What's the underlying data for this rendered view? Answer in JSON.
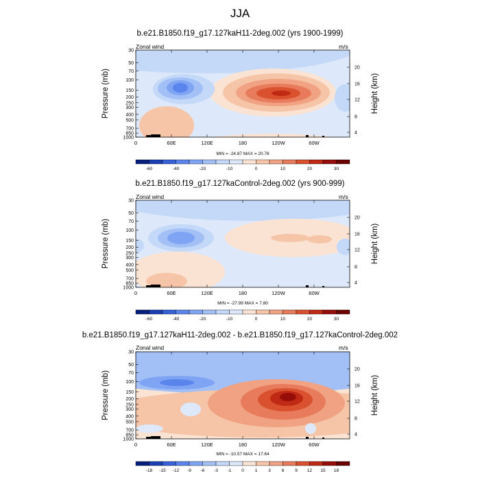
{
  "page_title": "JJA",
  "panels": [
    {
      "title": "b.e21.B1850.f19_g17.127kaH11-2deg.002 (yrs 1900-1999)",
      "left_label": "Zonal wind",
      "right_label": "m/s",
      "minmax": "MIN = -24.87  MAX = 20.78",
      "colorbar_labels": [
        "-60",
        "-40",
        "-20",
        "-10",
        "0",
        "10",
        "20",
        "30"
      ]
    },
    {
      "title": "b.e21.B1850.f19_g17.127kaControl-2deg.002 (yrs 900-999)",
      "left_label": "Zonal wind",
      "right_label": "m/s",
      "minmax": "MIN = -27.99  MAX =  7.80",
      "colorbar_labels": [
        "-60",
        "-40",
        "-20",
        "-10",
        "0",
        "10",
        "20",
        "30"
      ]
    },
    {
      "title": "b.e21.B1850.f19_g17.127kaH11-2deg.002 - b.e21.B1850.f19_g17.127kaControl-2deg.002",
      "left_label": "Zonal wind",
      "right_label": "m/s",
      "minmax": "MIN = -10.57  MAX = 17.64",
      "colorbar_labels": [
        "-18",
        "-15",
        "-12",
        "-9",
        "-6",
        "-3",
        "-1",
        "0",
        "1",
        "3",
        "6",
        "9",
        "12",
        "15",
        "18"
      ]
    }
  ],
  "chart_data": [
    {
      "type": "heatmap",
      "title": "b.e21.B1850.f19_g17.127kaH11-2deg.002 (yrs 1900-1999)",
      "ylabel": "Pressure (mb)",
      "y2label": "Height (km)",
      "x_ticks": [
        "0",
        "60E",
        "120E",
        "180",
        "120W",
        "60W"
      ],
      "y_ticks": [
        "30",
        "50",
        "70",
        "100",
        "150",
        "200",
        "250",
        "300",
        "400",
        "500",
        "700",
        "850",
        "1000"
      ],
      "y2_ticks": [
        "20",
        "16",
        "12",
        "8",
        "4"
      ],
      "xlim": [
        0,
        360
      ],
      "ylim_mb": [
        1000,
        30
      ],
      "levels": [
        -60,
        -50,
        -40,
        -30,
        -20,
        -15,
        -10,
        -5,
        0,
        5,
        10,
        15,
        20,
        25,
        30
      ],
      "colors": [
        "#08207d",
        "#1a3fb4",
        "#3661d9",
        "#5a85ec",
        "#7ea4f3",
        "#a2c0f6",
        "#c4d8f8",
        "#dde9fa",
        "#fbe3d3",
        "#f6c5a8",
        "#f0a282",
        "#e77b5b",
        "#d9512f",
        "#c02a14",
        "#960d09",
        "#6b0000"
      ],
      "min": -24.87,
      "max": 20.78,
      "features": [
        {
          "lon": 195,
          "p_mb": 145,
          "value": 20.8
        },
        {
          "lon": 60,
          "p_mb": 130,
          "value": -24.9
        },
        {
          "lon": 45,
          "p_mb": 400,
          "value": 8
        },
        {
          "lon": 175,
          "p_mb": 500,
          "value": 2
        }
      ]
    },
    {
      "type": "heatmap",
      "title": "b.e21.B1850.f19_g17.127kaControl-2deg.002 (yrs 900-999)",
      "ylabel": "Pressure (mb)",
      "y2label": "Height (km)",
      "x_ticks": [
        "0",
        "60E",
        "120E",
        "180",
        "120W",
        "60W"
      ],
      "y_ticks": [
        "30",
        "50",
        "70",
        "100",
        "150",
        "200",
        "250",
        "300",
        "400",
        "500",
        "700",
        "850",
        "1000"
      ],
      "y2_ticks": [
        "20",
        "16",
        "12",
        "8",
        "4"
      ],
      "xlim": [
        0,
        360
      ],
      "ylim_mb": [
        1000,
        30
      ],
      "levels": [
        -60,
        -50,
        -40,
        -30,
        -20,
        -15,
        -10,
        -5,
        0,
        5,
        10,
        15,
        20,
        25,
        30
      ],
      "colors": [
        "#08207d",
        "#1a3fb4",
        "#3661d9",
        "#5a85ec",
        "#7ea4f3",
        "#a2c0f6",
        "#c4d8f8",
        "#dde9fa",
        "#fbe3d3",
        "#f6c5a8",
        "#f0a282",
        "#e77b5b",
        "#d9512f",
        "#c02a14",
        "#960d09",
        "#6b0000"
      ],
      "min": -27.99,
      "max": 7.8,
      "features": [
        {
          "lon": 55,
          "p_mb": 135,
          "value": -28.0
        },
        {
          "lon": 220,
          "p_mb": 150,
          "value": 7.8
        },
        {
          "lon": 50,
          "p_mb": 450,
          "value": 6
        }
      ]
    },
    {
      "type": "heatmap",
      "title": "b.e21.B1850.f19_g17.127kaH11-2deg.002 - b.e21.B1850.f19_g17.127kaControl-2deg.002",
      "ylabel": "Pressure (mb)",
      "y2label": "Height (km)",
      "x_ticks": [
        "0",
        "60E",
        "120E",
        "180",
        "120W",
        "60W"
      ],
      "y_ticks": [
        "30",
        "50",
        "70",
        "100",
        "150",
        "200",
        "250",
        "300",
        "400",
        "500",
        "700",
        "850",
        "1000"
      ],
      "y2_ticks": [
        "20",
        "16",
        "12",
        "8",
        "4"
      ],
      "xlim": [
        0,
        360
      ],
      "ylim_mb": [
        1000,
        30
      ],
      "levels": [
        -18,
        -15,
        -12,
        -9,
        -6,
        -3,
        -1,
        0,
        1,
        3,
        6,
        9,
        12,
        15,
        18
      ],
      "colors": [
        "#08207d",
        "#1a3fb4",
        "#3661d9",
        "#5a85ec",
        "#7ea4f3",
        "#a2c0f6",
        "#c4d8f8",
        "#dde9fa",
        "#fbe3d3",
        "#f6c5a8",
        "#f0a282",
        "#e77b5b",
        "#d9512f",
        "#c02a14",
        "#960d09",
        "#6b0000"
      ],
      "min": -10.57,
      "max": 17.64,
      "features": [
        {
          "lon": 240,
          "p_mb": 220,
          "value": 17.6
        },
        {
          "lon": 60,
          "p_mb": 95,
          "value": -10.6
        },
        {
          "lon": 180,
          "p_mb": 300,
          "value": 6
        }
      ]
    }
  ]
}
